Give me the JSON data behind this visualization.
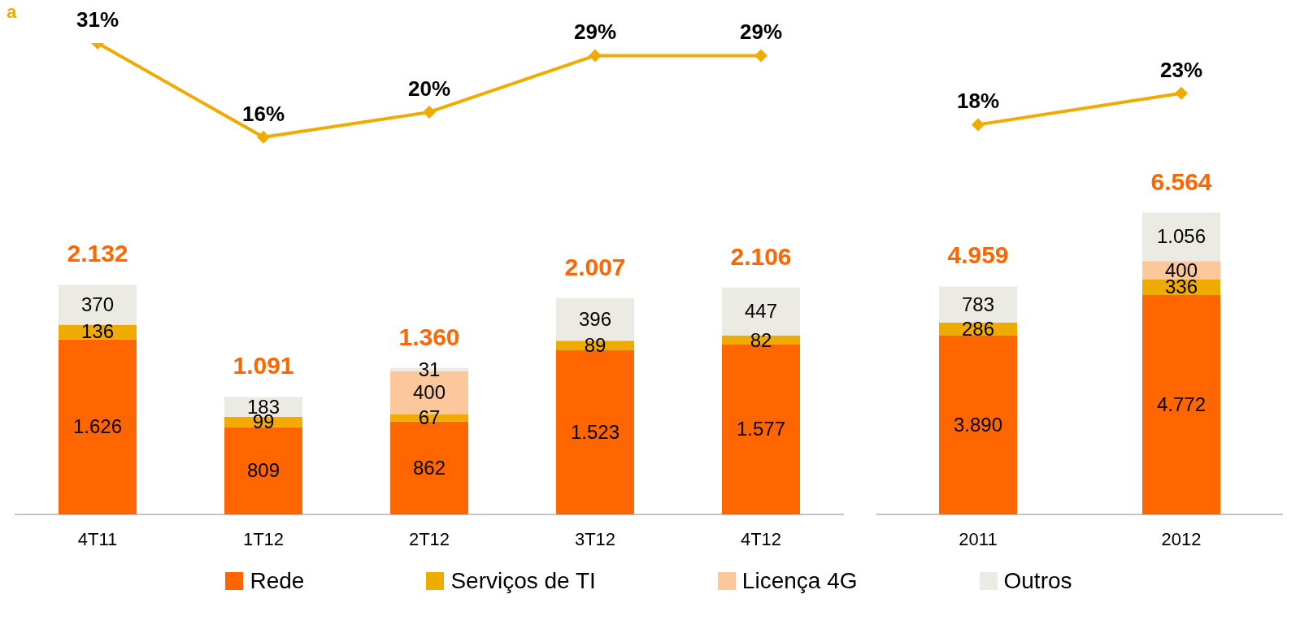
{
  "chart_data": [
    {
      "type": "line",
      "categories": [
        null,
        null,
        null,
        null,
        null
      ],
      "tick_labels": false,
      "marker": "diamond",
      "annotations": [
        "a"
      ],
      "series": [
        {
          "color": "#f0ab00",
          "values": [
            31,
            16,
            20,
            29,
            29
          ],
          "value_labels": [
            "31%",
            "16%",
            "20%",
            "29%",
            "29%"
          ]
        }
      ]
    },
    {
      "type": "line",
      "categories": [
        null,
        null
      ],
      "tick_labels": false,
      "marker": "diamond",
      "series": [
        {
          "color": "#f0ab00",
          "values": [
            18,
            23
          ],
          "value_labels": [
            "18%",
            "23%"
          ]
        }
      ]
    },
    {
      "type": "bar",
      "stacked": true,
      "categories": [
        "4T11",
        "1T12",
        "2T12",
        "3T12",
        "4T12"
      ],
      "tick_labels": "x",
      "legend": "bottom",
      "series": [
        {
          "name": "Rede",
          "color": "#ff6600",
          "values": [
            1626,
            809,
            862,
            1523,
            1577
          ],
          "value_labels": [
            "1.626",
            "809",
            "862",
            "1.523",
            "1.577"
          ]
        },
        {
          "name": "Serviços de TI",
          "color": "#f0ab00",
          "values": [
            136,
            99,
            67,
            89,
            82
          ],
          "value_labels": [
            "136",
            "99",
            "67",
            "89",
            "82"
          ]
        },
        {
          "name": "Licença 4G",
          "color": "#fcc89b",
          "values": [
            null,
            null,
            400,
            null,
            null
          ],
          "value_labels": [
            null,
            null,
            "400",
            null,
            null
          ]
        },
        {
          "name": "Outros",
          "color": "#ecebe3",
          "values": [
            370,
            183,
            31,
            396,
            447
          ],
          "value_labels": [
            "370",
            "183",
            "31",
            "396",
            "447"
          ]
        }
      ],
      "totals": [
        "2.132",
        "1.091",
        "1.360",
        "2.007",
        "2.106"
      ]
    },
    {
      "type": "bar",
      "stacked": true,
      "categories": [
        "2011",
        "2012"
      ],
      "tick_labels": "x",
      "series": [
        {
          "color": "#ff6600",
          "values": [
            3890,
            4772
          ],
          "value_labels": [
            "3.890",
            "4.772"
          ]
        },
        {
          "color": "#f0ab00",
          "values": [
            286,
            336
          ],
          "value_labels": [
            "286",
            "336"
          ]
        },
        {
          "color": "#fcc89b",
          "values": [
            null,
            400
          ],
          "value_labels": [
            null,
            "400"
          ]
        },
        {
          "color": "#ecebe3",
          "values": [
            783,
            1056
          ],
          "value_labels": [
            "783",
            "1.056"
          ]
        }
      ],
      "totals": [
        "4.959",
        "6.564"
      ]
    }
  ]
}
